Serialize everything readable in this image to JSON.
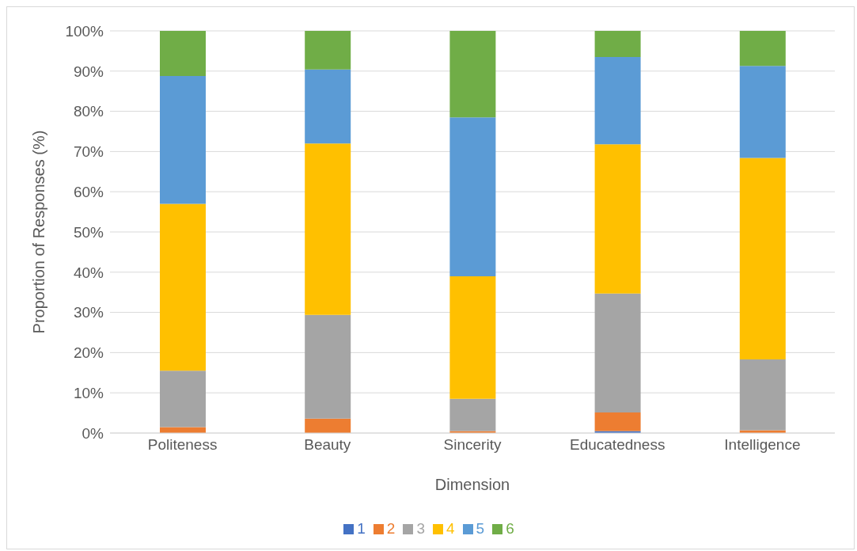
{
  "chart_data": {
    "type": "bar",
    "stacked": true,
    "xlabel": "Dimension",
    "ylabel": "Proportion of Responses (%)",
    "categories": [
      "Politeness",
      "Beauty",
      "Sincerity",
      "Educatedness",
      "Intelligence"
    ],
    "series": [
      {
        "name": "1",
        "color": "#4472c4",
        "values": [
          0,
          0,
          0,
          0.5,
          0
        ]
      },
      {
        "name": "2",
        "color": "#ed7d31",
        "values": [
          1.5,
          3.6,
          0.5,
          4.6,
          0.7
        ]
      },
      {
        "name": "3",
        "color": "#a5a5a5",
        "values": [
          14,
          25.8,
          8,
          29.6,
          17.6
        ]
      },
      {
        "name": "4",
        "color": "#ffc000",
        "values": [
          41.5,
          42.6,
          30.5,
          37.1,
          50.1
        ]
      },
      {
        "name": "5",
        "color": "#5b9bd5",
        "values": [
          31.8,
          18.4,
          39.5,
          21.7,
          22.9
        ]
      },
      {
        "name": "6",
        "color": "#70ad47",
        "values": [
          11.2,
          9.6,
          21.5,
          6.5,
          8.7
        ]
      }
    ],
    "ylim": [
      0,
      100
    ],
    "yticks": [
      {
        "value": 0,
        "label": "0%"
      },
      {
        "value": 10,
        "label": "10%"
      },
      {
        "value": 20,
        "label": "20%"
      },
      {
        "value": 30,
        "label": "30%"
      },
      {
        "value": 40,
        "label": "40%"
      },
      {
        "value": 50,
        "label": "50%"
      },
      {
        "value": 60,
        "label": "60%"
      },
      {
        "value": 70,
        "label": "70%"
      },
      {
        "value": 80,
        "label": "80%"
      },
      {
        "value": 90,
        "label": "90%"
      },
      {
        "value": 100,
        "label": "100%"
      }
    ],
    "grid": "y",
    "legend": "bottom"
  }
}
